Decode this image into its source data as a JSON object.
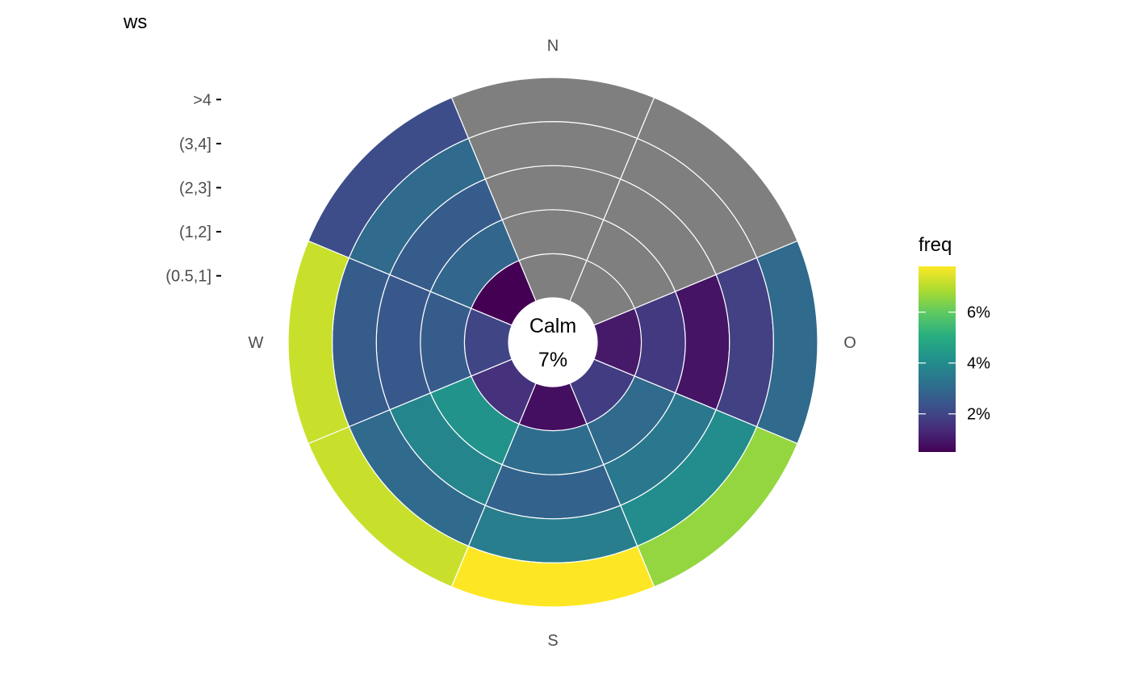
{
  "chart_data": {
    "type": "heatmap",
    "subtype": "polar-windrose",
    "y_title": "ws",
    "y_categories": [
      "(0.5,1]",
      "(1,2]",
      "(2,3]",
      "(3,4]",
      ">4"
    ],
    "direction_labels": [
      "N",
      "O",
      "S",
      "W"
    ],
    "sectors": [
      "N",
      "NO",
      "O",
      "SO",
      "S",
      "SW",
      "W",
      "NW"
    ],
    "center_label": "Calm",
    "center_value": "7%",
    "na_color": "#7f7f7f",
    "legend": {
      "title": "freq",
      "placement": "right",
      "ticks": [
        "2%",
        "4%",
        "6%"
      ],
      "tick_values": [
        2,
        4,
        6
      ],
      "range": [
        0.5,
        7.8
      ],
      "colors": [
        "#440154",
        "#472d7b",
        "#3b528b",
        "#2c728e",
        "#21918c",
        "#28ae80",
        "#5ec962",
        "#addc30",
        "#fde725"
      ]
    },
    "cells": [
      {
        "sector": "N",
        "values": [
          null,
          null,
          null,
          null,
          null
        ]
      },
      {
        "sector": "NO",
        "values": [
          null,
          null,
          null,
          null,
          null
        ]
      },
      {
        "sector": "O",
        "values": [
          1.0,
          1.7,
          0.9,
          1.9,
          3.0
        ]
      },
      {
        "sector": "SO",
        "values": [
          1.8,
          3.0,
          3.4,
          4.0,
          6.6
        ]
      },
      {
        "sector": "S",
        "values": [
          0.8,
          3.1,
          2.8,
          3.6,
          7.8
        ]
      },
      {
        "sector": "SW",
        "values": [
          1.5,
          4.2,
          3.8,
          3.0,
          7.2
        ]
      },
      {
        "sector": "W",
        "values": [
          2.0,
          2.6,
          2.5,
          2.6,
          7.2
        ]
      },
      {
        "sector": "NW",
        "values": [
          0.5,
          2.9,
          2.6,
          3.0,
          2.2
        ]
      }
    ]
  }
}
